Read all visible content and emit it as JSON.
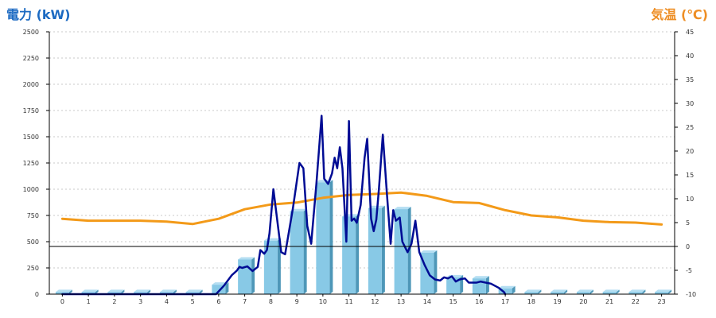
{
  "chart_data": {
    "type": "bar",
    "left_axis_title": "電力 (kW)",
    "right_axis_title": "気温 (℃)",
    "categories": [
      "0",
      "1",
      "2",
      "3",
      "4",
      "5",
      "6",
      "7",
      "8",
      "9",
      "10",
      "11",
      "12",
      "13",
      "14",
      "15",
      "16",
      "17",
      "18",
      "19",
      "20",
      "21",
      "22",
      "23"
    ],
    "y_left": {
      "min": 0,
      "max": 2500,
      "step": 250,
      "ticks": [
        "0",
        "250",
        "500",
        "750",
        "1000",
        "1250",
        "1500",
        "1750",
        "2000",
        "2250",
        "2500"
      ]
    },
    "y_right": {
      "min": -10,
      "max": 45,
      "step": 5,
      "ticks": [
        "-10",
        "-5",
        "0",
        "5",
        "10",
        "15",
        "20",
        "25",
        "30",
        "35",
        "40",
        "45"
      ]
    },
    "grid": true,
    "series": [
      {
        "type": "bar",
        "axis": "left",
        "values": [
          20,
          20,
          20,
          20,
          20,
          20,
          90,
          330,
          510,
          790,
          1065,
          740,
          820,
          810,
          395,
          160,
          150,
          55,
          20,
          20,
          20,
          20,
          20,
          20
        ]
      },
      {
        "type": "line",
        "axis": "left",
        "x": [
          0,
          5.9,
          6.2,
          6.5,
          6.7,
          6.8,
          6.9,
          7.1,
          7.3,
          7.5,
          7.6,
          7.75,
          7.85,
          7.95,
          8.1,
          8.25,
          8.4,
          8.55,
          8.7,
          8.85,
          9.1,
          9.25,
          9.4,
          9.55,
          9.75,
          9.95,
          10.05,
          10.2,
          10.35,
          10.45,
          10.55,
          10.65,
          10.75,
          10.9,
          11,
          11.1,
          11.2,
          11.3,
          11.45,
          11.6,
          11.7,
          11.85,
          11.95,
          12.05,
          12.15,
          12.3,
          12.45,
          12.6,
          12.7,
          12.8,
          12.95,
          13.05,
          13.25,
          13.4,
          13.55,
          13.7,
          13.9,
          14.1,
          14.3,
          14.5,
          14.65,
          14.8,
          14.95,
          15.1,
          15.25,
          15.45,
          15.6,
          15.75,
          15.9,
          16.05,
          16.25,
          16.45,
          16.6,
          16.75,
          16.95,
          17
        ],
        "values": [
          0,
          0,
          80,
          180,
          225,
          260,
          250,
          265,
          220,
          260,
          420,
          385,
          420,
          580,
          1000,
          700,
          400,
          380,
          600,
          820,
          1250,
          1200,
          650,
          480,
          1050,
          1700,
          1100,
          1050,
          1150,
          1300,
          1200,
          1400,
          1200,
          500,
          1650,
          700,
          720,
          680,
          850,
          1300,
          1480,
          720,
          600,
          710,
          1000,
          1520,
          980,
          480,
          800,
          700,
          730,
          500,
          400,
          480,
          700,
          400,
          280,
          180,
          140,
          130,
          160,
          150,
          170,
          120,
          140,
          150,
          110,
          110,
          110,
          120,
          110,
          100,
          80,
          60,
          20,
          0
        ]
      },
      {
        "type": "line",
        "axis": "right",
        "x": [
          0,
          1,
          2,
          3,
          4,
          5,
          6,
          7,
          8,
          9,
          10,
          11,
          12,
          13,
          14,
          15,
          16,
          17,
          18,
          19,
          20,
          21,
          22,
          23
        ],
        "values": [
          5.8,
          5.4,
          5.4,
          5.4,
          5.2,
          4.7,
          5.8,
          7.8,
          8.8,
          9.2,
          10.2,
          10.8,
          11.0,
          11.3,
          10.6,
          9.3,
          9.1,
          7.6,
          6.5,
          6.1,
          5.4,
          5.1,
          5.0,
          4.6
        ]
      }
    ]
  },
  "colors": {
    "bar": "#88c9e6",
    "bar_top": "#b4def2",
    "bar_side": "#4e97b8",
    "power_line": "#000c94",
    "temp_line": "#f39a19",
    "left_title": "#1c6ac2",
    "right_title": "#ee8e24"
  }
}
